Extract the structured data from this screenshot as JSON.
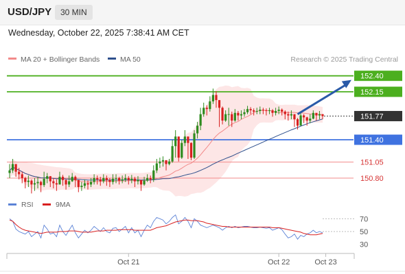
{
  "header": {
    "symbol": "USD/JPY",
    "timeframe": "30 MIN",
    "datetime": "Wednesday, October 22, 2025 7:38:41 AM CET"
  },
  "colors": {
    "resistance": "#4caf1f",
    "support": "#3f72e0",
    "target_line": "#f28a8a",
    "current": "#333333",
    "ma20": "#f28a8a",
    "ma50": "#2d4f8c",
    "band_fill": "#fde2e2",
    "candle_up": "#2e8b1f",
    "candle_down": "#d81f1f",
    "rsi": "#5b82d6",
    "rsi_ma": "#d81f1f",
    "arrow": "#2a5aa8"
  },
  "chart_data": [
    {
      "type": "candlestick",
      "legend": [
        {
          "name": "MA 20 + Bollinger Bands",
          "color": "#f28a8a"
        },
        {
          "name": "MA 50",
          "color": "#2d4f8c"
        }
      ],
      "legend_position": "top-left",
      "credit": "Research © 2025 Trading Central",
      "ylim": [
        150.5,
        152.6
      ],
      "x_ticks": [
        {
          "label": "Oct 21",
          "index": 38
        },
        {
          "label": "Oct 22",
          "index": 86
        },
        {
          "label": "Oct 23",
          "index": 101
        }
      ],
      "levels": [
        {
          "label": "152.40",
          "value": 152.4,
          "kind": "resistance"
        },
        {
          "label": "152.15",
          "value": 152.15,
          "kind": "resistance"
        },
        {
          "label": "151.77",
          "value": 151.77,
          "kind": "current"
        },
        {
          "label": "151.40",
          "value": 151.4,
          "kind": "support"
        },
        {
          "label": "151.05",
          "value": 151.05,
          "kind": "target"
        },
        {
          "label": "150.80",
          "value": 150.8,
          "kind": "target"
        }
      ],
      "projection": {
        "from_index": 92,
        "from": 151.8,
        "to": 152.4
      },
      "close": [
        150.92,
        151.02,
        150.9,
        150.86,
        150.8,
        150.74,
        150.76,
        150.7,
        150.72,
        150.74,
        150.69,
        150.79,
        150.83,
        150.75,
        150.72,
        150.7,
        150.82,
        150.77,
        150.7,
        150.75,
        150.82,
        150.77,
        150.66,
        150.68,
        150.72,
        150.7,
        150.74,
        150.8,
        150.78,
        150.75,
        150.8,
        150.77,
        150.74,
        150.79,
        150.8,
        150.76,
        150.78,
        150.8,
        150.77,
        150.79,
        150.75,
        150.77,
        150.7,
        150.76,
        150.8,
        150.78,
        150.92,
        151.03,
        151.06,
        151.08,
        151.02,
        151.06,
        151.3,
        151.45,
        151.12,
        151.35,
        151.45,
        151.35,
        151.12,
        151.5,
        151.62,
        151.8,
        151.9,
        151.88,
        152.0,
        152.1,
        152.02,
        151.9,
        151.7,
        151.8,
        151.8,
        151.7,
        151.82,
        151.78,
        151.8,
        151.83,
        151.88,
        151.86,
        151.84,
        151.85,
        151.87,
        151.86,
        151.85,
        151.86,
        151.82,
        151.85,
        151.87,
        151.84,
        151.8,
        151.78,
        151.8,
        151.72,
        151.62,
        151.78,
        151.75,
        151.7,
        151.73,
        151.82,
        151.78,
        151.8,
        151.77
      ],
      "high": [
        151.02,
        151.1,
        151.0,
        150.96,
        150.9,
        150.82,
        150.84,
        150.78,
        150.8,
        150.82,
        150.76,
        150.9,
        150.88,
        150.83,
        150.8,
        150.78,
        150.9,
        150.85,
        150.78,
        150.84,
        150.88,
        150.84,
        150.72,
        150.74,
        150.78,
        150.76,
        150.8,
        150.86,
        150.84,
        150.82,
        150.86,
        150.84,
        150.8,
        150.86,
        150.86,
        150.82,
        150.84,
        150.86,
        150.83,
        150.85,
        150.82,
        150.83,
        150.76,
        150.82,
        150.86,
        150.84,
        151.0,
        151.1,
        151.12,
        151.14,
        151.08,
        151.1,
        151.4,
        151.55,
        151.38,
        151.4,
        151.55,
        151.45,
        151.36,
        151.55,
        151.68,
        151.9,
        151.98,
        151.94,
        152.08,
        152.2,
        152.16,
        152.0,
        151.92,
        151.86,
        151.9,
        151.84,
        151.88,
        151.85,
        151.86,
        151.88,
        151.93,
        151.91,
        151.89,
        151.9,
        151.92,
        151.9,
        151.89,
        151.9,
        151.88,
        151.9,
        151.92,
        151.89,
        151.86,
        151.84,
        151.86,
        151.8,
        151.74,
        151.84,
        151.8,
        151.76,
        151.8,
        151.86,
        151.82,
        151.85,
        151.8
      ],
      "low": [
        150.8,
        150.88,
        150.82,
        150.78,
        150.72,
        150.64,
        150.66,
        150.56,
        150.6,
        150.64,
        150.58,
        150.66,
        150.72,
        150.66,
        150.64,
        150.6,
        150.7,
        150.68,
        150.62,
        150.66,
        150.74,
        150.66,
        150.58,
        150.6,
        150.64,
        150.62,
        150.66,
        150.7,
        150.7,
        150.68,
        150.72,
        150.68,
        150.66,
        150.7,
        150.72,
        150.7,
        150.72,
        150.74,
        150.7,
        150.72,
        150.66,
        150.7,
        150.6,
        150.68,
        150.74,
        150.72,
        150.74,
        150.88,
        150.96,
        150.98,
        150.92,
        151.0,
        151.04,
        151.12,
        151.06,
        151.1,
        151.3,
        151.1,
        151.08,
        151.1,
        151.42,
        151.55,
        151.76,
        151.78,
        151.84,
        151.96,
        151.9,
        151.6,
        151.64,
        151.68,
        151.62,
        151.6,
        151.68,
        151.7,
        151.72,
        151.76,
        151.8,
        151.8,
        151.78,
        151.8,
        151.8,
        151.8,
        151.78,
        151.8,
        151.76,
        151.78,
        151.8,
        151.78,
        151.72,
        151.7,
        151.72,
        151.6,
        151.56,
        151.62,
        151.66,
        151.62,
        151.66,
        151.72,
        151.7,
        151.72,
        151.72
      ]
    },
    {
      "type": "line",
      "legend": [
        {
          "name": "RSI",
          "color": "#5b82d6"
        },
        {
          "name": "9MA",
          "color": "#d81f1f"
        }
      ],
      "ylim": [
        20,
        80
      ],
      "y_ticks": [
        70,
        50,
        30
      ],
      "rsi": [
        70,
        66,
        54,
        50,
        48,
        46,
        50,
        42,
        46,
        50,
        40,
        60,
        54,
        46,
        48,
        42,
        60,
        50,
        44,
        52,
        60,
        48,
        40,
        46,
        52,
        48,
        52,
        58,
        54,
        50,
        56,
        50,
        48,
        55,
        56,
        50,
        54,
        58,
        48,
        56,
        48,
        52,
        42,
        52,
        60,
        56,
        66,
        72,
        70,
        68,
        62,
        66,
        72,
        76,
        62,
        66,
        72,
        66,
        56,
        70,
        66,
        60,
        58,
        56,
        58,
        60,
        58,
        56,
        52,
        56,
        58,
        56,
        58,
        56,
        57,
        58,
        58,
        57,
        56,
        56,
        57,
        56,
        55,
        56,
        52,
        54,
        56,
        53,
        46,
        40,
        42,
        46,
        38,
        44,
        42,
        46,
        48,
        52,
        48,
        50,
        48
      ],
      "rsi_ma": [
        68,
        66,
        61,
        57,
        54,
        52,
        51,
        50,
        49,
        48,
        47,
        48,
        49,
        49,
        49,
        49,
        50,
        50,
        50,
        51,
        51,
        51,
        50,
        49,
        49,
        49,
        49,
        50,
        51,
        51,
        51,
        52,
        52,
        52,
        52,
        53,
        53,
        53,
        53,
        53,
        52,
        52,
        52,
        52,
        52,
        52,
        54,
        56,
        57,
        58,
        59,
        61,
        63,
        65,
        66,
        67,
        68,
        68,
        67,
        67,
        67,
        66,
        65,
        63,
        62,
        61,
        60,
        59,
        58,
        58,
        57,
        57,
        57,
        57,
        57,
        57,
        57,
        57,
        57,
        57,
        57,
        57,
        57,
        57,
        56,
        56,
        56,
        55,
        54,
        53,
        52,
        51,
        50,
        49,
        47,
        46,
        45,
        45,
        45,
        46,
        47
      ]
    }
  ]
}
